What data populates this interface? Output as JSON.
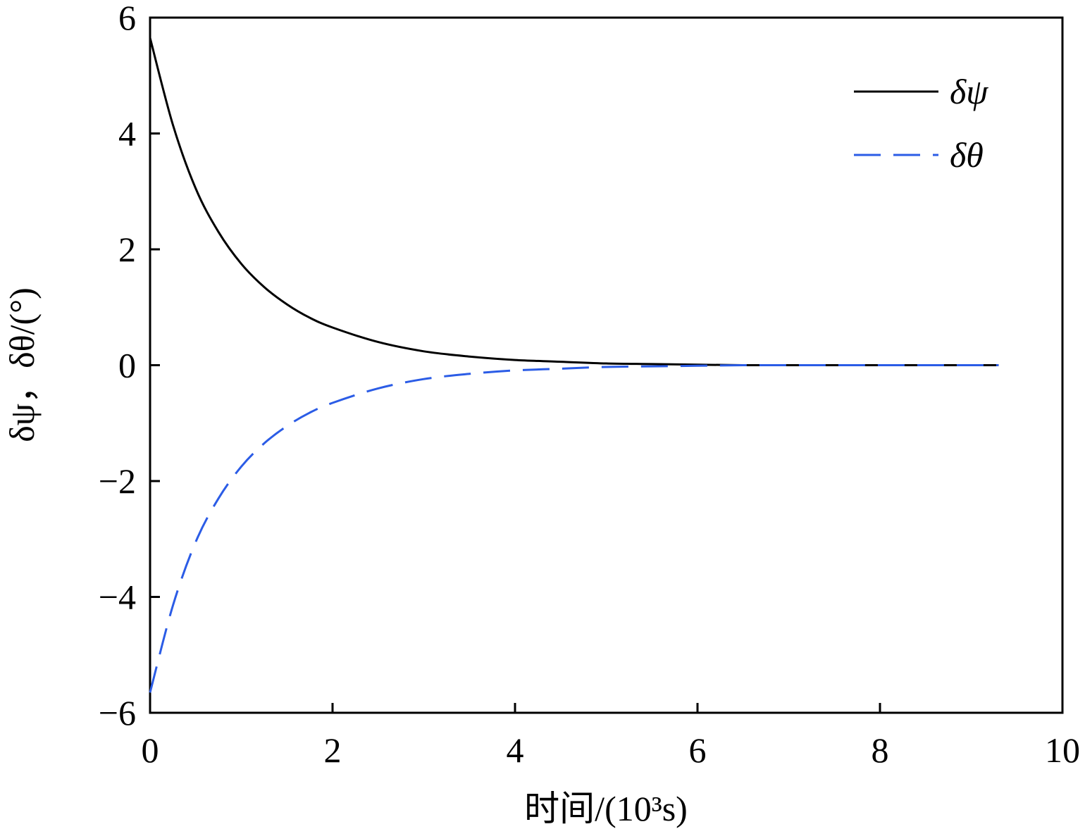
{
  "chart_data": {
    "type": "line",
    "xlabel": "时间/(10³s)",
    "ylabel": "δψ，δθ/(°)",
    "xlim": [
      0,
      10
    ],
    "ylim": [
      -6,
      6
    ],
    "xticks": [
      0,
      2,
      4,
      6,
      8,
      10
    ],
    "xtick_labels": [
      "0",
      "2",
      "4",
      "6",
      "8",
      "10"
    ],
    "yticks": [
      -6,
      -4,
      -2,
      0,
      2,
      4,
      6
    ],
    "ytick_labels": [
      "−6",
      "−4",
      "−2",
      "0",
      "2",
      "4",
      "6"
    ],
    "grid": false,
    "legend_position": "top-right",
    "x": [
      0,
      0.25,
      0.5,
      0.75,
      1.0,
      1.25,
      1.5,
      1.75,
      2.0,
      2.5,
      3.0,
      3.5,
      4.0,
      4.5,
      5.0,
      5.5,
      6.0,
      6.5,
      7.0,
      7.5,
      8.0,
      8.5,
      9.0,
      9.3
    ],
    "series": [
      {
        "name": "δψ",
        "color": "#000000",
        "style": "solid",
        "values": [
          5.65,
          4.15,
          3.05,
          2.3,
          1.75,
          1.35,
          1.05,
          0.82,
          0.65,
          0.4,
          0.24,
          0.15,
          0.09,
          0.06,
          0.03,
          0.02,
          0.01,
          0.0,
          0.0,
          0.0,
          0.0,
          0.0,
          0.0,
          0.0
        ]
      },
      {
        "name": "δθ",
        "color": "#2b5ce6",
        "style": "dashed",
        "values": [
          -5.65,
          -4.15,
          -3.05,
          -2.3,
          -1.75,
          -1.35,
          -1.05,
          -0.82,
          -0.65,
          -0.4,
          -0.24,
          -0.15,
          -0.09,
          -0.06,
          -0.03,
          -0.02,
          -0.01,
          0.0,
          0.0,
          0.0,
          0.0,
          0.0,
          0.0,
          0.0
        ]
      }
    ]
  }
}
